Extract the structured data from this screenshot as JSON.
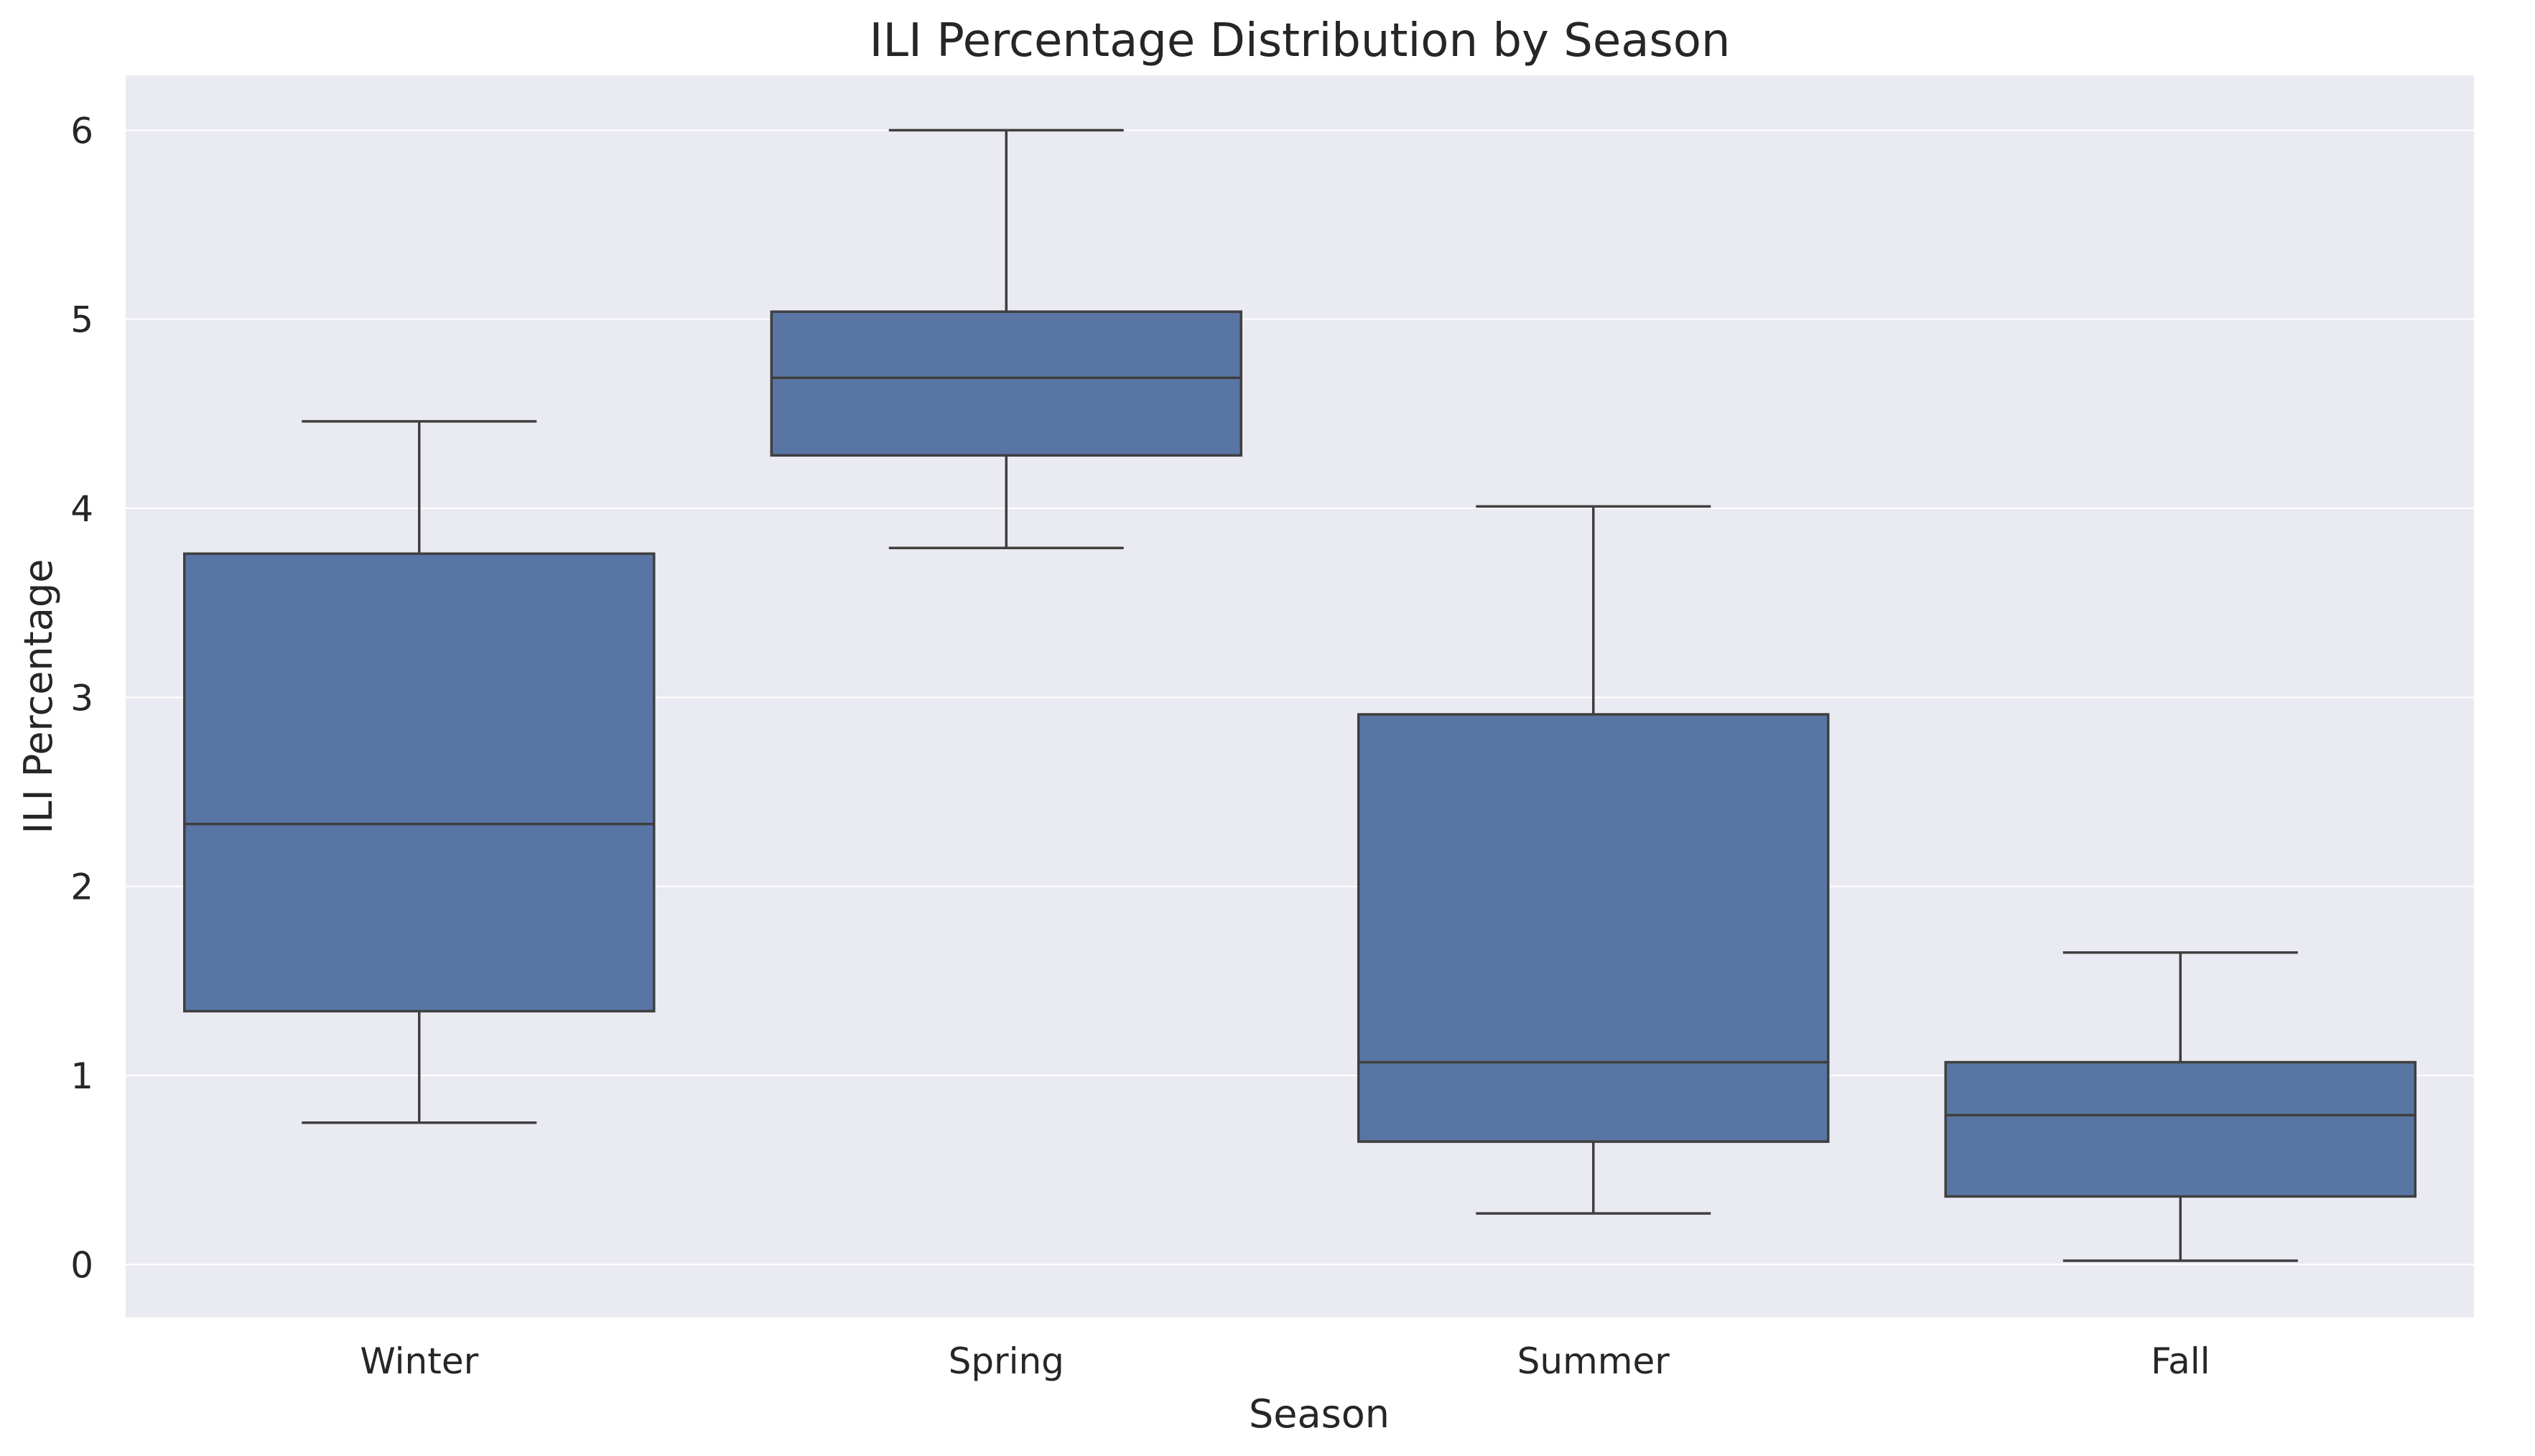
{
  "chart_data": {
    "type": "boxplot",
    "title": "ILI Percentage Distribution by Season",
    "xlabel": "Season",
    "ylabel": "ILI Percentage",
    "categories": [
      "Winter",
      "Spring",
      "Summer",
      "Fall"
    ],
    "series": [
      {
        "category": "Winter",
        "whisker_low": 0.75,
        "q1": 1.34,
        "median": 2.33,
        "q3": 3.76,
        "whisker_high": 4.46
      },
      {
        "category": "Spring",
        "whisker_low": 3.79,
        "q1": 4.28,
        "median": 4.69,
        "q3": 5.04,
        "whisker_high": 6.0
      },
      {
        "category": "Summer",
        "whisker_low": 0.27,
        "q1": 0.65,
        "median": 1.07,
        "q3": 2.91,
        "whisker_high": 4.01
      },
      {
        "category": "Fall",
        "whisker_low": 0.02,
        "q1": 0.36,
        "median": 0.79,
        "q3": 1.07,
        "whisker_high": 1.65
      }
    ],
    "ylim": [
      -0.28,
      6.29
    ],
    "yticks": [
      "0",
      "1",
      "2",
      "3",
      "4",
      "5",
      "6"
    ],
    "grid": true,
    "colors": {
      "box_fill": "#5875a4",
      "line": "#3f3f3f",
      "plot_background": "#eaeaf2",
      "grid": "#ffffff"
    }
  }
}
